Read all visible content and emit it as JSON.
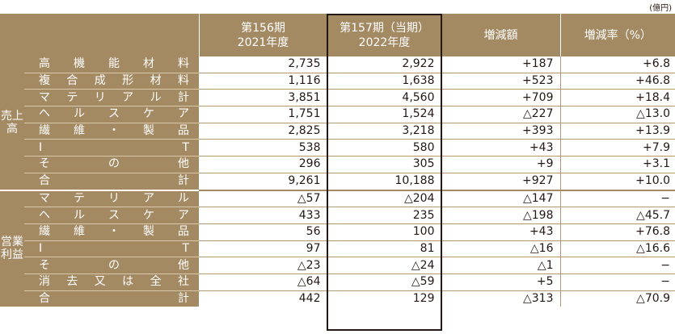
{
  "unit": "(億円)",
  "header": {
    "prev_period": "第156期",
    "prev_year": "2021年度",
    "curr_period": "第157期（当期）",
    "curr_year": "2022年度",
    "change": "増減額",
    "change_rate": "増減率（%）"
  },
  "sales": {
    "label": "売上高",
    "rows": [
      {
        "chars": [
          "高",
          "機",
          "能",
          "材",
          "料"
        ],
        "fy2021": "2,735",
        "fy2022": "2,922",
        "change": "+187",
        "rate": "+6.8"
      },
      {
        "chars": [
          "複",
          "合",
          "成",
          "形",
          "材",
          "料"
        ],
        "fy2021": "1,116",
        "fy2022": "1,638",
        "change": "+523",
        "rate": "+46.8"
      },
      {
        "chars": [
          "マ",
          "テ",
          "リ",
          "ア",
          "ル",
          "計"
        ],
        "fy2021": "3,851",
        "fy2022": "4,560",
        "change": "+709",
        "rate": "+18.4"
      },
      {
        "chars": [
          "ヘ",
          "ル",
          "ス",
          "ケ",
          "ア"
        ],
        "fy2021": "1,751",
        "fy2022": "1,524",
        "change": "△227",
        "rate": "△13.0"
      },
      {
        "chars": [
          "繊",
          "維",
          "・",
          "製",
          "品"
        ],
        "fy2021": "2,825",
        "fy2022": "3,218",
        "change": "+393",
        "rate": "+13.9"
      },
      {
        "chars": [
          "I",
          "T"
        ],
        "fy2021": "538",
        "fy2022": "580",
        "change": "+43",
        "rate": "+7.9"
      },
      {
        "chars": [
          "そ",
          "の",
          "他"
        ],
        "fy2021": "296",
        "fy2022": "305",
        "change": "+9",
        "rate": "+3.1"
      },
      {
        "chars": [
          "合",
          "計"
        ],
        "fy2021": "9,261",
        "fy2022": "10,188",
        "change": "+927",
        "rate": "+10.0"
      }
    ]
  },
  "operating_income": {
    "label": "営業利益",
    "rows": [
      {
        "chars": [
          "マ",
          "テ",
          "リ",
          "ア",
          "ル"
        ],
        "fy2021": "△57",
        "fy2022": "△204",
        "change": "△147",
        "rate": "−"
      },
      {
        "chars": [
          "ヘ",
          "ル",
          "ス",
          "ケ",
          "ア"
        ],
        "fy2021": "433",
        "fy2022": "235",
        "change": "△198",
        "rate": "△45.7"
      },
      {
        "chars": [
          "繊",
          "維",
          "・",
          "製",
          "品"
        ],
        "fy2021": "56",
        "fy2022": "100",
        "change": "+43",
        "rate": "+76.8"
      },
      {
        "chars": [
          "I",
          "T"
        ],
        "fy2021": "97",
        "fy2022": "81",
        "change": "△16",
        "rate": "△16.6"
      },
      {
        "chars": [
          "そ",
          "の",
          "他"
        ],
        "fy2021": "△23",
        "fy2022": "△24",
        "change": "△1",
        "rate": "−"
      },
      {
        "chars": [
          "消",
          "去",
          "又",
          "は",
          "全",
          "社"
        ],
        "fy2021": "△64",
        "fy2022": "△59",
        "change": "+5",
        "rate": "−"
      },
      {
        "chars": [
          "合",
          "計"
        ],
        "fy2021": "442",
        "fy2022": "129",
        "change": "△313",
        "rate": "△70.9"
      }
    ]
  }
}
